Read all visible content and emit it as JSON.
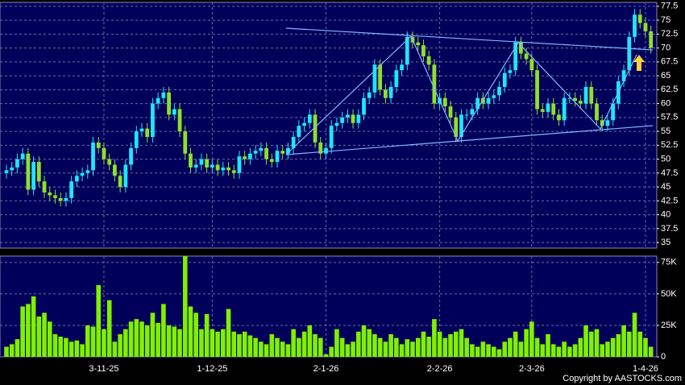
{
  "chart_data": {
    "type": "candlestick",
    "categories": [
      null,
      null,
      null,
      null,
      null,
      null,
      null,
      null,
      null,
      null,
      null,
      null,
      null,
      null,
      null,
      null,
      null,
      null,
      "3-11-25",
      null,
      null,
      null,
      null,
      null,
      null,
      null,
      null,
      null,
      null,
      null,
      null,
      null,
      null,
      null,
      null,
      null,
      null,
      null,
      "1-12-25",
      null,
      null,
      null,
      null,
      null,
      null,
      null,
      null,
      null,
      null,
      null,
      null,
      null,
      null,
      null,
      null,
      null,
      null,
      null,
      null,
      "2-1-26",
      null,
      null,
      null,
      null,
      null,
      null,
      null,
      null,
      null,
      null,
      null,
      null,
      null,
      null,
      null,
      null,
      null,
      null,
      null,
      null,
      "2-2-26",
      null,
      null,
      null,
      null,
      null,
      null,
      null,
      null,
      null,
      null,
      null,
      null,
      null,
      null,
      null,
      null,
      "2-3-26",
      null,
      null,
      null,
      null,
      null,
      null,
      null,
      null,
      null,
      null,
      null,
      null,
      null,
      null,
      null,
      null,
      null,
      null,
      null,
      null,
      "1-4-26",
      null
    ],
    "open": [
      47.5,
      48,
      48.5,
      50,
      51,
      44.5,
      49.5,
      46,
      44,
      43.5,
      43,
      42.5,
      43,
      46,
      47,
      47.5,
      48,
      53,
      52,
      50,
      49,
      47,
      45,
      49,
      52,
      55,
      55.5,
      54,
      60,
      61,
      62,
      58,
      59,
      55,
      51,
      48.5,
      49,
      50,
      48.5,
      49,
      48,
      48.5,
      48,
      47.5,
      50.5,
      50,
      51,
      51.5,
      52,
      50,
      49.5,
      51.5,
      51,
      52,
      54,
      56,
      56.5,
      58,
      53,
      51,
      52,
      56,
      56.5,
      57.5,
      58,
      56.5,
      58,
      61,
      62,
      67,
      62.5,
      61,
      63,
      66,
      67,
      72,
      71,
      70.5,
      68.5,
      67,
      60,
      61,
      59.5,
      57.5,
      54,
      58,
      58,
      59,
      61,
      60,
      61,
      61.5,
      63,
      65.5,
      66,
      71,
      69,
      68,
      66,
      59,
      58.5,
      60,
      58,
      57,
      61,
      61,
      60.5,
      60,
      63,
      60,
      57,
      56,
      57,
      60,
      64,
      66,
      72,
      76,
      74.5,
      73
    ],
    "high": [
      49,
      49.5,
      51,
      52,
      52,
      50.5,
      50.5,
      47,
      45,
      44.5,
      44,
      44,
      47,
      48,
      48.5,
      49,
      54,
      54,
      53,
      51,
      50,
      48,
      50,
      53,
      56,
      56.5,
      56.5,
      61,
      62,
      63,
      63,
      60,
      60,
      56,
      52,
      50,
      51,
      51,
      50,
      50,
      49.5,
      49.5,
      49,
      51.5,
      51.5,
      52,
      52.5,
      53,
      53,
      51,
      52.5,
      52.5,
      53,
      55,
      57,
      57.5,
      59,
      59,
      54,
      53,
      57,
      57.5,
      58.5,
      59,
      59,
      59,
      62,
      63,
      68,
      68,
      63.5,
      64,
      67,
      68,
      73,
      73,
      72,
      71.5,
      69.5,
      68,
      62,
      62,
      60.5,
      58.5,
      59,
      59,
      60,
      62,
      62,
      62,
      62.5,
      64,
      66.5,
      67,
      72,
      72,
      70,
      69,
      67,
      60,
      61,
      61,
      59,
      62,
      62,
      62,
      61.5,
      64,
      64,
      61,
      58,
      58,
      61,
      65,
      67,
      73,
      77,
      77,
      75.5,
      74
    ],
    "low": [
      46.5,
      47,
      47.5,
      49,
      43.5,
      43.5,
      45,
      43,
      42.5,
      42,
      41.5,
      41.5,
      42,
      45,
      46,
      46.5,
      47,
      51,
      49,
      48,
      46,
      44,
      44,
      48,
      51,
      54,
      53,
      53,
      59,
      60,
      57,
      57,
      54,
      50,
      47.5,
      47.5,
      48,
      47.5,
      47.5,
      47,
      47,
      47,
      46.5,
      46.5,
      49,
      49,
      50,
      50.5,
      49,
      48.5,
      48.5,
      50,
      50,
      51,
      53,
      55,
      55.5,
      52,
      50,
      50,
      51,
      55,
      55.5,
      56.5,
      55.5,
      55.5,
      57,
      60,
      61,
      61.5,
      60,
      60,
      62,
      65,
      66,
      70,
      69.5,
      67.5,
      66,
      59,
      59,
      58.5,
      56.5,
      53,
      53,
      57,
      57,
      58,
      59,
      59,
      60,
      60.5,
      62,
      64.5,
      65,
      68,
      67,
      65,
      58,
      57.5,
      57.5,
      57,
      56,
      56,
      60,
      59.5,
      59,
      59,
      59,
      56,
      55,
      55,
      56,
      59,
      63,
      65,
      71,
      73.5,
      72,
      69
    ],
    "close": [
      48,
      48.5,
      50,
      51,
      44.5,
      49.5,
      46,
      44,
      43.5,
      43,
      42.5,
      43,
      46,
      47,
      47.5,
      48,
      53,
      52,
      50,
      49,
      47,
      45,
      49,
      52,
      55,
      55.5,
      54,
      60,
      61,
      62,
      58,
      59,
      55,
      51,
      48.5,
      49,
      50,
      48.5,
      49,
      48,
      48.5,
      48,
      47.5,
      50.5,
      50,
      51,
      51.5,
      52,
      50,
      49.5,
      51.5,
      51,
      52,
      54,
      56,
      56.5,
      58,
      53,
      51,
      52,
      56,
      56.5,
      57.5,
      58,
      56.5,
      58,
      61,
      62,
      67,
      62.5,
      61,
      63,
      66,
      67,
      72,
      71,
      70.5,
      68.5,
      67,
      60,
      61,
      59.5,
      57.5,
      54,
      58,
      58,
      59,
      61,
      60,
      61,
      61.5,
      63,
      65.5,
      66,
      71,
      69,
      68,
      66,
      59,
      58.5,
      60,
      58,
      57,
      61,
      61,
      60.5,
      60,
      63,
      60,
      57,
      56,
      57,
      60,
      64,
      66,
      72,
      76,
      74.5,
      73,
      70
    ],
    "up_color": "#1ee6ff",
    "down_color": "#8fe02a",
    "ylim": [
      34,
      78.2
    ],
    "yticks": [
      35,
      37.5,
      40,
      42.5,
      45,
      47.5,
      50,
      52.5,
      55,
      57.5,
      60,
      62.5,
      65,
      67.5,
      70,
      72.5,
      75,
      77.5
    ],
    "grid": true,
    "volume": {
      "values": [
        8000,
        10000,
        14000,
        40000,
        42000,
        48000,
        32000,
        35000,
        28000,
        18000,
        16000,
        15000,
        12000,
        13000,
        10000,
        25000,
        24000,
        57000,
        22000,
        45000,
        12000,
        18000,
        22000,
        28000,
        30000,
        28000,
        25000,
        35000,
        27000,
        42000,
        25000,
        24000,
        22000,
        80000,
        40000,
        35000,
        22000,
        34000,
        22000,
        20000,
        22000,
        38000,
        20000,
        18000,
        20000,
        17000,
        15000,
        12000,
        10000,
        18000,
        15000,
        12000,
        10000,
        22000,
        15000,
        20000,
        25000,
        18000,
        15000,
        2000,
        8000,
        22000,
        15000,
        10000,
        12000,
        20000,
        25000,
        22000,
        18000,
        15000,
        12000,
        18000,
        15000,
        10000,
        14000,
        12000,
        15000,
        20000,
        16000,
        30000,
        20000,
        15000,
        18000,
        20000,
        22000,
        15000,
        10000,
        8000,
        12000,
        10000,
        8000,
        6000,
        12000,
        15000,
        20000,
        12000,
        22000,
        28000,
        15000,
        10000,
        18000,
        10000,
        8000,
        12000,
        8000,
        10000,
        15000,
        25000,
        20000,
        22000,
        10000,
        12000,
        15000,
        18000,
        25000,
        20000,
        35000,
        20000,
        15000,
        8000
      ],
      "color": "#80f000",
      "ylim": [
        0,
        80000
      ],
      "yticks": [
        0,
        {
          "value": 25000,
          "label": "25K"
        },
        {
          "value": 50000,
          "label": "50K"
        },
        {
          "value": 75000,
          "label": "75K"
        }
      ]
    }
  },
  "copyright": "Copyright by AASTOCKS.com"
}
